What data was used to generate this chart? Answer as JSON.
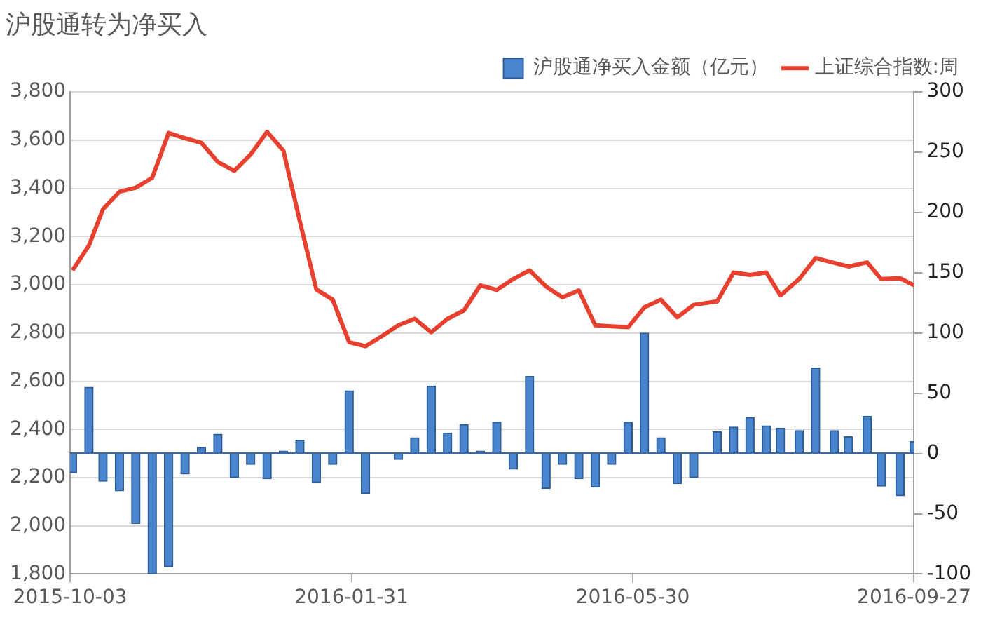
{
  "chart_data": {
    "type": "bar",
    "title": "沪股通转为净买入",
    "x": [
      "2015-10-04",
      "2015-10-11",
      "2015-10-17",
      "2015-10-24",
      "2015-10-31",
      "2015-11-07",
      "2015-11-14",
      "2015-11-21",
      "2015-11-28",
      "2015-12-05",
      "2015-12-12",
      "2015-12-19",
      "2015-12-26",
      "2016-01-02",
      "2016-01-09",
      "2016-01-16",
      "2016-01-23",
      "2016-01-30",
      "2016-02-06",
      "2016-02-13",
      "2016-02-20",
      "2016-02-27",
      "2016-03-05",
      "2016-03-12",
      "2016-03-19",
      "2016-03-26",
      "2016-04-02",
      "2016-04-09",
      "2016-04-16",
      "2016-04-23",
      "2016-04-30",
      "2016-05-07",
      "2016-05-14",
      "2016-05-21",
      "2016-05-28",
      "2016-06-04",
      "2016-06-11",
      "2016-06-18",
      "2016-06-25",
      "2016-07-05",
      "2016-07-12",
      "2016-07-19",
      "2016-07-26",
      "2016-08-01",
      "2016-08-09",
      "2016-08-16",
      "2016-08-24",
      "2016-08-30",
      "2016-09-07",
      "2016-09-13",
      "2016-09-21",
      "2016-09-27"
    ],
    "xlim": [
      "2015-10-03",
      "2016-09-27"
    ],
    "xticks": [
      "2015-10-03",
      "2016-01-31",
      "2016-05-30",
      "2016-09-27"
    ],
    "ylim": [
      1800,
      3800
    ],
    "yticks": [
      {
        "value": 1800,
        "label": "1,800"
      },
      {
        "value": 2000,
        "label": "2,000"
      },
      {
        "value": 2200,
        "label": "2,200"
      },
      {
        "value": 2400,
        "label": "2,400"
      },
      {
        "value": 2600,
        "label": "2,600"
      },
      {
        "value": 2800,
        "label": "2,800"
      },
      {
        "value": 3000,
        "label": "3,000"
      },
      {
        "value": 3200,
        "label": "3,200"
      },
      {
        "value": 3400,
        "label": "3,400"
      },
      {
        "value": 3600,
        "label": "3,600"
      },
      {
        "value": 3800,
        "label": "3,800"
      }
    ],
    "y2lim": [
      -100,
      300
    ],
    "y2ticks": [
      -100,
      -50,
      0,
      50,
      100,
      150,
      200,
      250,
      300
    ],
    "grid": "y",
    "legend": "top right",
    "marker": "none",
    "ref_lines": [
      {
        "axis": "y2",
        "value": 0,
        "color": "#44679a"
      }
    ],
    "series": [
      {
        "name": "沪股通净买入金额（亿元）",
        "axis": "y2",
        "color": "#4a86d0",
        "values": [
          -16,
          55,
          -23,
          -31,
          -58,
          -100,
          -94,
          -17,
          5,
          16,
          -20,
          -9,
          -21,
          2,
          11,
          -24,
          -9,
          52,
          -33,
          null,
          -5,
          13,
          56,
          17,
          24,
          2,
          26,
          -13,
          64,
          -29,
          -9,
          -21,
          -28,
          -9,
          26,
          100,
          13,
          -25,
          -20,
          18,
          22,
          30,
          23,
          21,
          19,
          71,
          19,
          14,
          31,
          -27,
          -35,
          10
        ]
      },
      {
        "name": "上证综合指数:周",
        "type": "line",
        "color": "#e8402f",
        "values": [
          3060,
          3163,
          3314,
          3386,
          3403,
          3444,
          3630,
          3608,
          3589,
          3510,
          3473,
          3541,
          3635,
          3556,
          3262,
          2981,
          2938,
          2762,
          2745,
          2787,
          2832,
          2859,
          2803,
          2859,
          2894,
          2998,
          2979,
          3024,
          3060,
          2993,
          2948,
          2977,
          2832,
          2828,
          2824,
          2907,
          2938,
          2865,
          2917,
          2931,
          3051,
          3041,
          3051,
          2956,
          3024,
          3111,
          3091,
          3076,
          3093,
          3024,
          3027,
          2998
        ]
      }
    ]
  }
}
